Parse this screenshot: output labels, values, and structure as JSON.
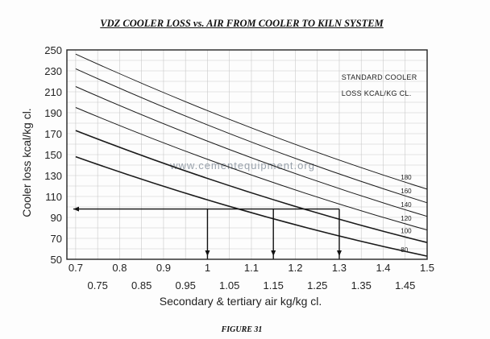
{
  "title": "VDZ COOLER LOSS vs. AIR FROM COOLER TO KILN SYSTEM",
  "caption": "FIGURE 31",
  "watermark": "www.cementequipment.org",
  "chart_data": {
    "type": "line",
    "ylabel": "Cooler loss kcal/kg cl.",
    "xlabel": "Secondary & tertiary air kg/kg cl.",
    "xlim": [
      0.68,
      1.5
    ],
    "ylim": [
      50,
      250
    ],
    "x_ticks_upper": [
      "0.7",
      "0.8",
      "0.9",
      "1",
      "1.1",
      "1.2",
      "1.3",
      "1.4",
      "1.5"
    ],
    "x_ticks_lower": [
      "0.75",
      "0.85",
      "0.95",
      "1.05",
      "1.15",
      "1.25",
      "1.35",
      "1.45"
    ],
    "y_ticks": [
      "50",
      "70",
      "90",
      "110",
      "130",
      "150",
      "170",
      "190",
      "210",
      "230",
      "250"
    ],
    "legend_title": [
      "STANDARD COOLER",
      "LOSS   KCAL/KG CL."
    ],
    "grid": true,
    "x": [
      0.7,
      1.5
    ],
    "series": [
      {
        "name": "180",
        "values": [
          246,
          117
        ]
      },
      {
        "name": "160",
        "values": [
          232,
          104
        ]
      },
      {
        "name": "140",
        "values": [
          215,
          91
        ]
      },
      {
        "name": "120",
        "values": [
          195,
          78
        ]
      },
      {
        "name": "100",
        "values": [
          173,
          66
        ]
      },
      {
        "name": "80",
        "values": [
          148,
          53
        ]
      }
    ],
    "reference_line": {
      "y": 98,
      "x_from": 0.68,
      "x_to": 1.3
    },
    "drop_lines_x": [
      1.0,
      1.15,
      1.3
    ]
  }
}
